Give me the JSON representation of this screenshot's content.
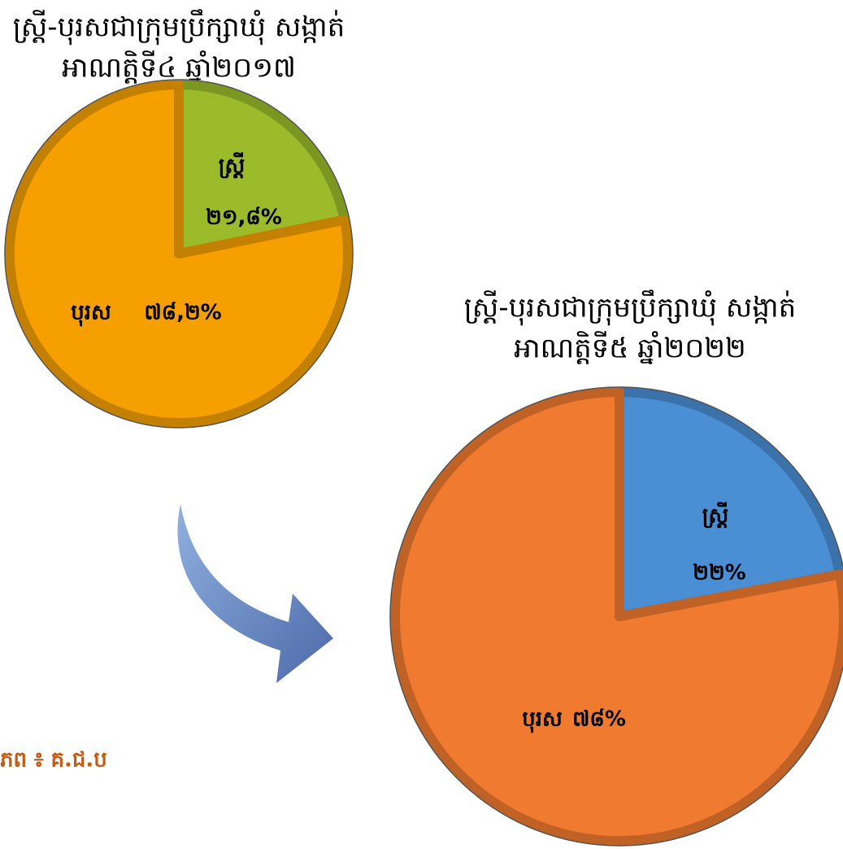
{
  "chart_data": [
    {
      "type": "pie",
      "title": [
        "ស្ត្រី-បុរសជាក្រុមប្រឹក្សាឃុំ សង្កាត់",
        "អាណត្តិទី៤ ឆ្នាំ២០១៧"
      ],
      "categories": [
        "ស្ត្រី",
        "បុរស"
      ],
      "values": [
        21.8,
        78.2
      ],
      "value_labels": [
        "២១,៨%",
        "៧៨,២%"
      ],
      "colors": [
        "#9bbb2a",
        "#f5a000"
      ]
    },
    {
      "type": "pie",
      "title": [
        "ស្ត្រី-បុរសជាក្រុមប្រឹក្សាឃុំ សង្កាត់",
        "អាណត្តិទី៥ ឆ្នាំ២០២២"
      ],
      "categories": [
        "ស្ត្រី",
        "បុរស"
      ],
      "values": [
        22,
        78
      ],
      "value_labels": [
        "២២%",
        "៧៨%"
      ],
      "colors": [
        "#4a8fd4",
        "#f07a30"
      ]
    }
  ],
  "source": "ភព ៖ គ.ជ.ប"
}
